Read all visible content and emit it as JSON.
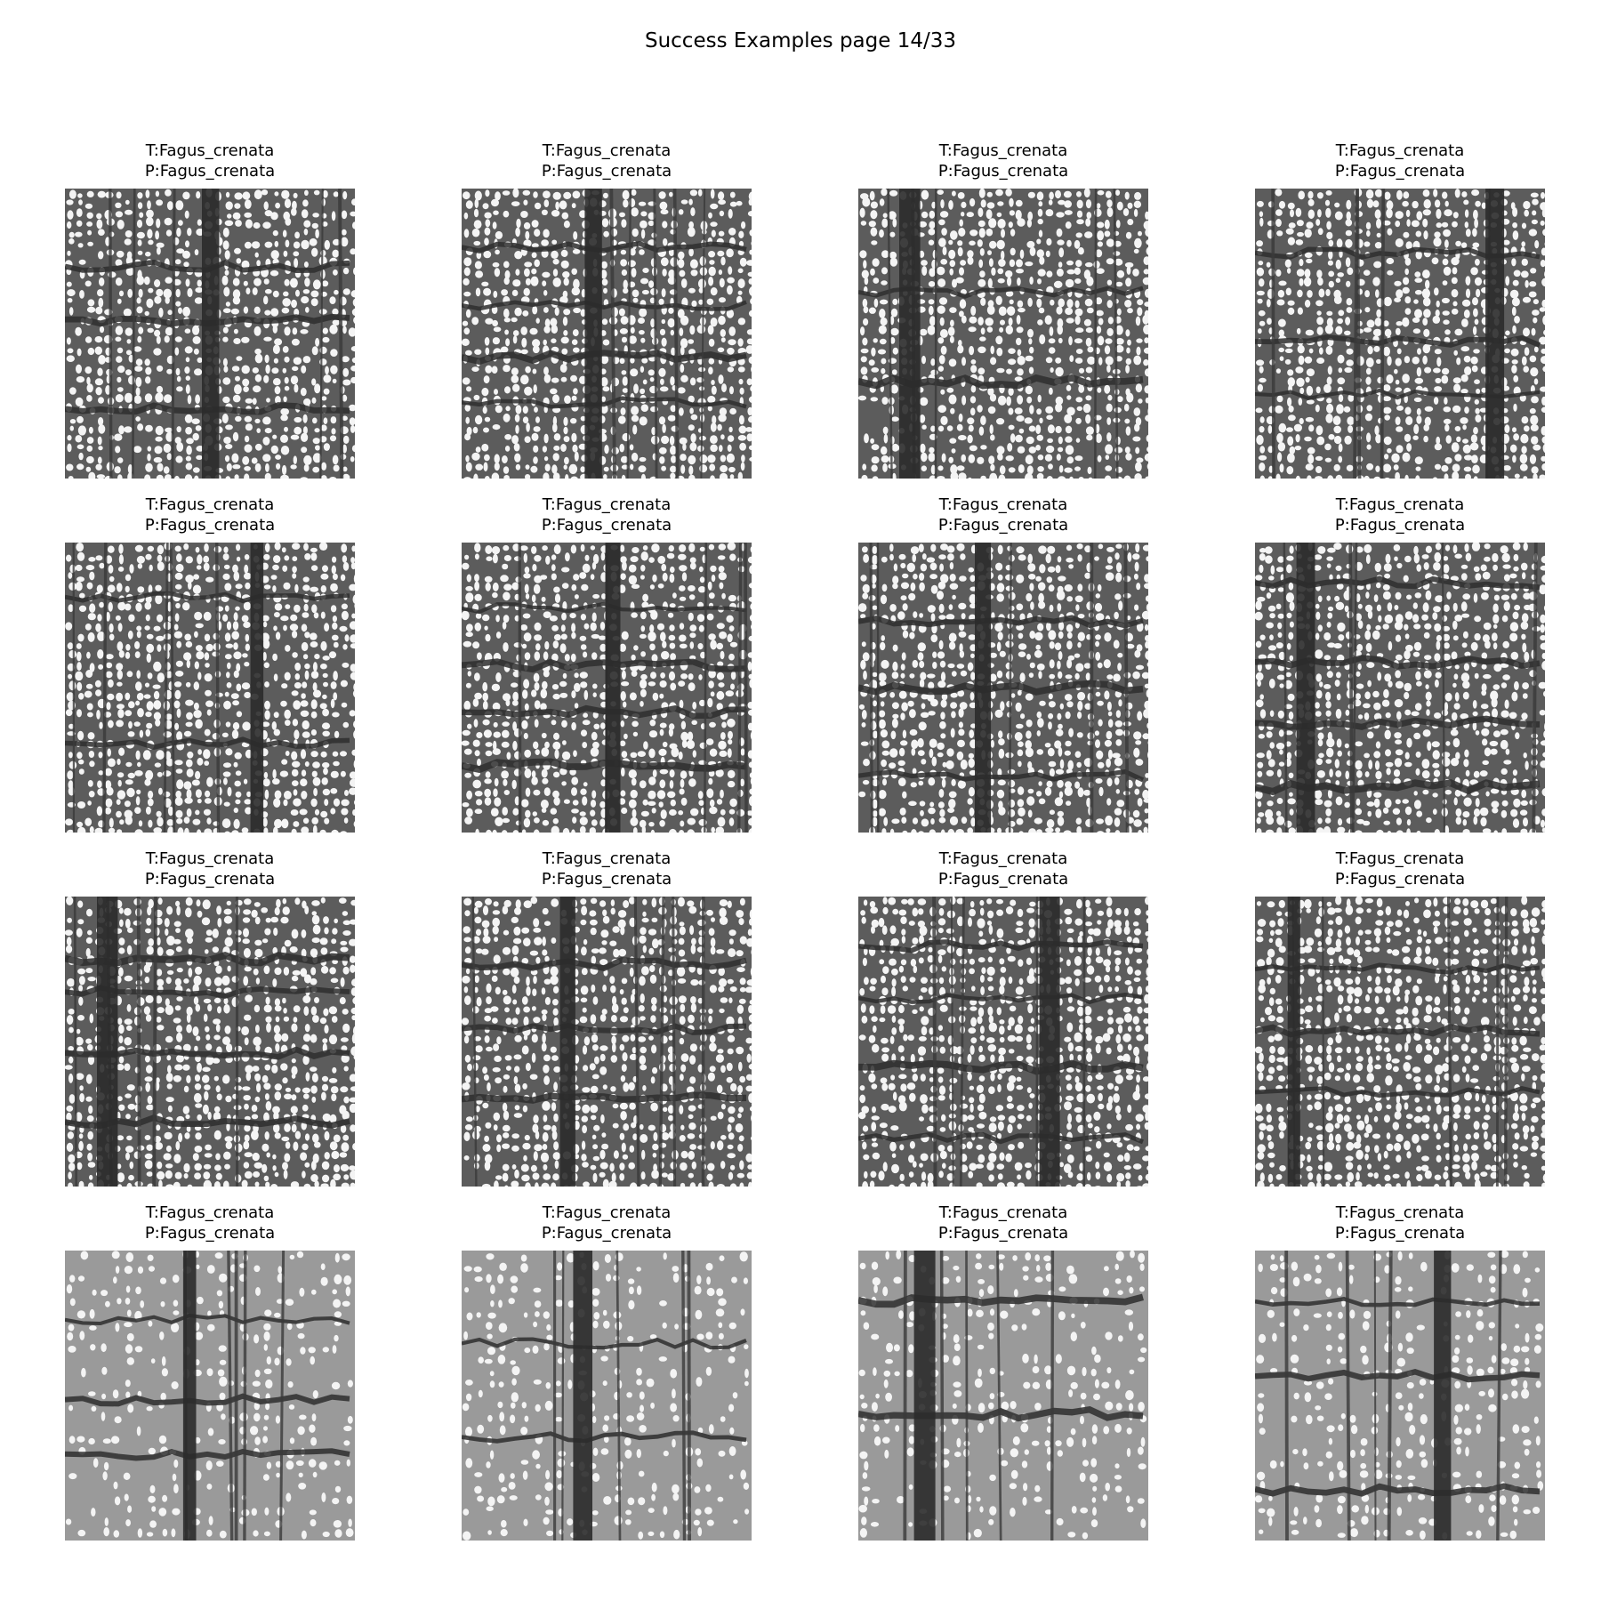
{
  "figure": {
    "title": "Success Examples page 14/33"
  },
  "grid": {
    "rows": 4,
    "columns": 4
  },
  "panels": [
    {
      "true_label": "T:Fagus_crenata",
      "pred_label": "P:Fagus_crenata",
      "image": "wood-cross-section-micrograph"
    },
    {
      "true_label": "T:Fagus_crenata",
      "pred_label": "P:Fagus_crenata",
      "image": "wood-cross-section-micrograph"
    },
    {
      "true_label": "T:Fagus_crenata",
      "pred_label": "P:Fagus_crenata",
      "image": "wood-cross-section-micrograph"
    },
    {
      "true_label": "T:Fagus_crenata",
      "pred_label": "P:Fagus_crenata",
      "image": "wood-cross-section-micrograph"
    },
    {
      "true_label": "T:Fagus_crenata",
      "pred_label": "P:Fagus_crenata",
      "image": "wood-cross-section-micrograph"
    },
    {
      "true_label": "T:Fagus_crenata",
      "pred_label": "P:Fagus_crenata",
      "image": "wood-cross-section-micrograph"
    },
    {
      "true_label": "T:Fagus_crenata",
      "pred_label": "P:Fagus_crenata",
      "image": "wood-cross-section-micrograph"
    },
    {
      "true_label": "T:Fagus_crenata",
      "pred_label": "P:Fagus_crenata",
      "image": "wood-cross-section-micrograph"
    },
    {
      "true_label": "T:Fagus_crenata",
      "pred_label": "P:Fagus_crenata",
      "image": "wood-cross-section-micrograph"
    },
    {
      "true_label": "T:Fagus_crenata",
      "pred_label": "P:Fagus_crenata",
      "image": "wood-cross-section-micrograph"
    },
    {
      "true_label": "T:Fagus_crenata",
      "pred_label": "P:Fagus_crenata",
      "image": "wood-cross-section-micrograph"
    },
    {
      "true_label": "T:Fagus_crenata",
      "pred_label": "P:Fagus_crenata",
      "image": "wood-cross-section-micrograph"
    },
    {
      "true_label": "T:Fagus_crenata",
      "pred_label": "P:Fagus_crenata",
      "image": "wood-cross-section-micrograph"
    },
    {
      "true_label": "T:Fagus_crenata",
      "pred_label": "P:Fagus_crenata",
      "image": "wood-cross-section-micrograph"
    },
    {
      "true_label": "T:Fagus_crenata",
      "pred_label": "P:Fagus_crenata",
      "image": "wood-cross-section-micrograph"
    },
    {
      "true_label": "T:Fagus_crenata",
      "pred_label": "P:Fagus_crenata",
      "image": "wood-cross-section-micrograph"
    }
  ]
}
